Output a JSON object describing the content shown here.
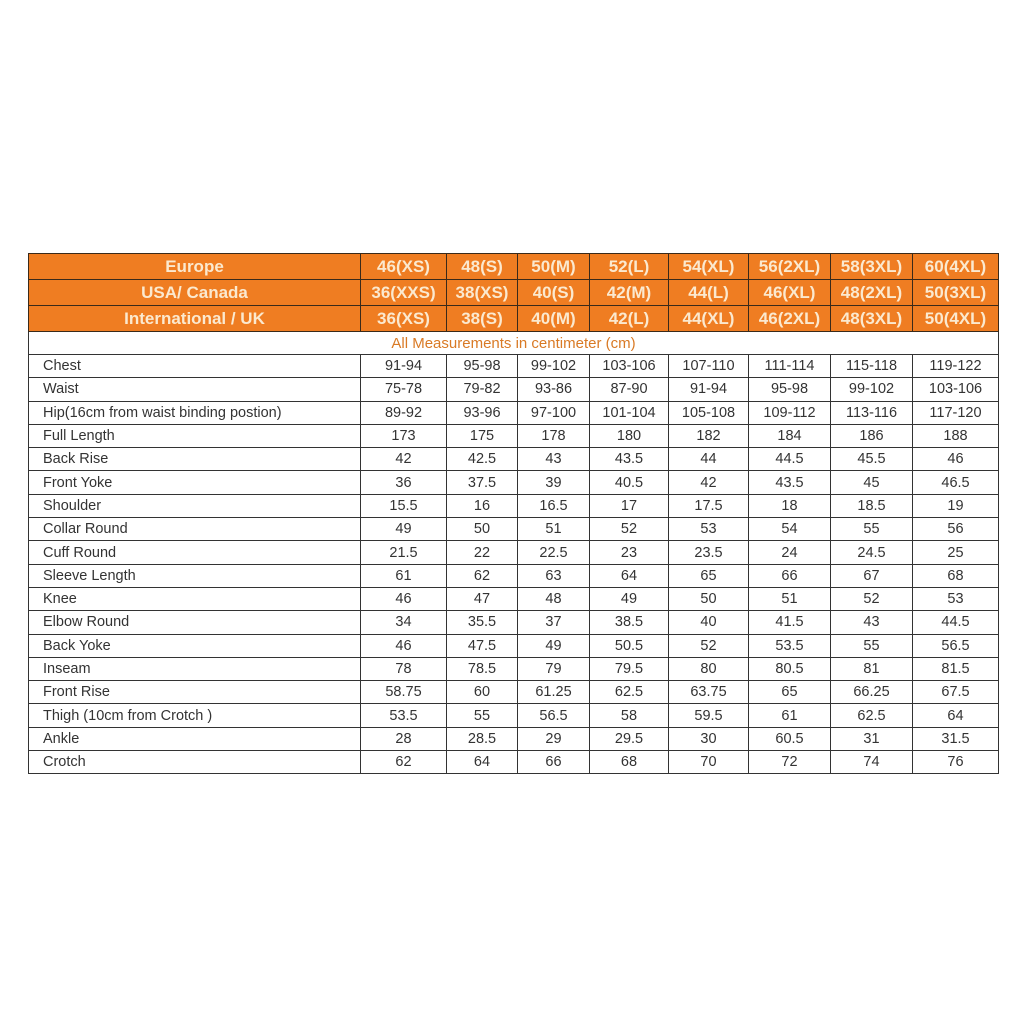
{
  "header_rows": [
    {
      "label": "Europe",
      "sizes": [
        "46(XS)",
        "48(S)",
        "50(M)",
        "52(L)",
        "54(XL)",
        "56(2XL)",
        "58(3XL)",
        "60(4XL)"
      ]
    },
    {
      "label": "USA/ Canada",
      "sizes": [
        "36(XXS)",
        "38(XS)",
        "40(S)",
        "42(M)",
        "44(L)",
        "46(XL)",
        "48(2XL)",
        "50(3XL)"
      ]
    },
    {
      "label": "International / UK",
      "sizes": [
        "36(XS)",
        "38(S)",
        "40(M)",
        "42(L)",
        "44(XL)",
        "46(2XL)",
        "48(3XL)",
        "50(4XL)"
      ]
    }
  ],
  "subtitle": "All Measurements in centimeter (cm)",
  "rows": [
    {
      "label": "Chest",
      "values": [
        "91-94",
        "95-98",
        "99-102",
        "103-106",
        "107-110",
        "111-114",
        "115-118",
        "119-122"
      ]
    },
    {
      "label": "Waist",
      "values": [
        "75-78",
        "79-82",
        "93-86",
        "87-90",
        "91-94",
        "95-98",
        "99-102",
        "103-106"
      ]
    },
    {
      "label": "Hip(16cm from waist binding postion)",
      "values": [
        "89-92",
        "93-96",
        "97-100",
        "101-104",
        "105-108",
        "109-112",
        "113-116",
        "117-120"
      ]
    },
    {
      "label": "Full Length",
      "values": [
        "173",
        "175",
        "178",
        "180",
        "182",
        "184",
        "186",
        "188"
      ]
    },
    {
      "label": "Back Rise",
      "values": [
        "42",
        "42.5",
        "43",
        "43.5",
        "44",
        "44.5",
        "45.5",
        "46"
      ]
    },
    {
      "label": "Front Yoke",
      "values": [
        "36",
        "37.5",
        "39",
        "40.5",
        "42",
        "43.5",
        "45",
        "46.5"
      ]
    },
    {
      "label": "Shoulder",
      "values": [
        "15.5",
        "16",
        "16.5",
        "17",
        "17.5",
        "18",
        "18.5",
        "19"
      ]
    },
    {
      "label": "Collar Round",
      "values": [
        "49",
        "50",
        "51",
        "52",
        "53",
        "54",
        "55",
        "56"
      ]
    },
    {
      "label": "Cuff Round",
      "values": [
        "21.5",
        "22",
        "22.5",
        "23",
        "23.5",
        "24",
        "24.5",
        "25"
      ]
    },
    {
      "label": "Sleeve Length",
      "values": [
        "61",
        "62",
        "63",
        "64",
        "65",
        "66",
        "67",
        "68"
      ]
    },
    {
      "label": "Knee",
      "values": [
        "46",
        "47",
        "48",
        "49",
        "50",
        "51",
        "52",
        "53"
      ]
    },
    {
      "label": "Elbow Round",
      "values": [
        "34",
        "35.5",
        "37",
        "38.5",
        "40",
        "41.5",
        "43",
        "44.5"
      ]
    },
    {
      "label": "Back Yoke",
      "values": [
        "46",
        "47.5",
        "49",
        "50.5",
        "52",
        "53.5",
        "55",
        "56.5"
      ]
    },
    {
      "label": "Inseam",
      "values": [
        "78",
        "78.5",
        "79",
        "79.5",
        "80",
        "80.5",
        "81",
        "81.5"
      ]
    },
    {
      "label": "Front Rise",
      "values": [
        "58.75",
        "60",
        "61.25",
        "62.5",
        "63.75",
        "65",
        "66.25",
        "67.5"
      ]
    },
    {
      "label": "Thigh (10cm from Crotch )",
      "values": [
        "53.5",
        "55",
        "56.5",
        "58",
        "59.5",
        "61",
        "62.5",
        "64"
      ]
    },
    {
      "label": "Ankle",
      "values": [
        "28",
        "28.5",
        "29",
        "29.5",
        "30",
        "60.5",
        "31",
        "31.5"
      ]
    },
    {
      "label": "Crotch",
      "values": [
        "62",
        "64",
        "66",
        "68",
        "70",
        "72",
        "74",
        "76"
      ]
    }
  ],
  "colors": {
    "header_bg": "#ef7d22",
    "header_text": "#fbe9cf",
    "subtitle_text": "#d97a25"
  }
}
